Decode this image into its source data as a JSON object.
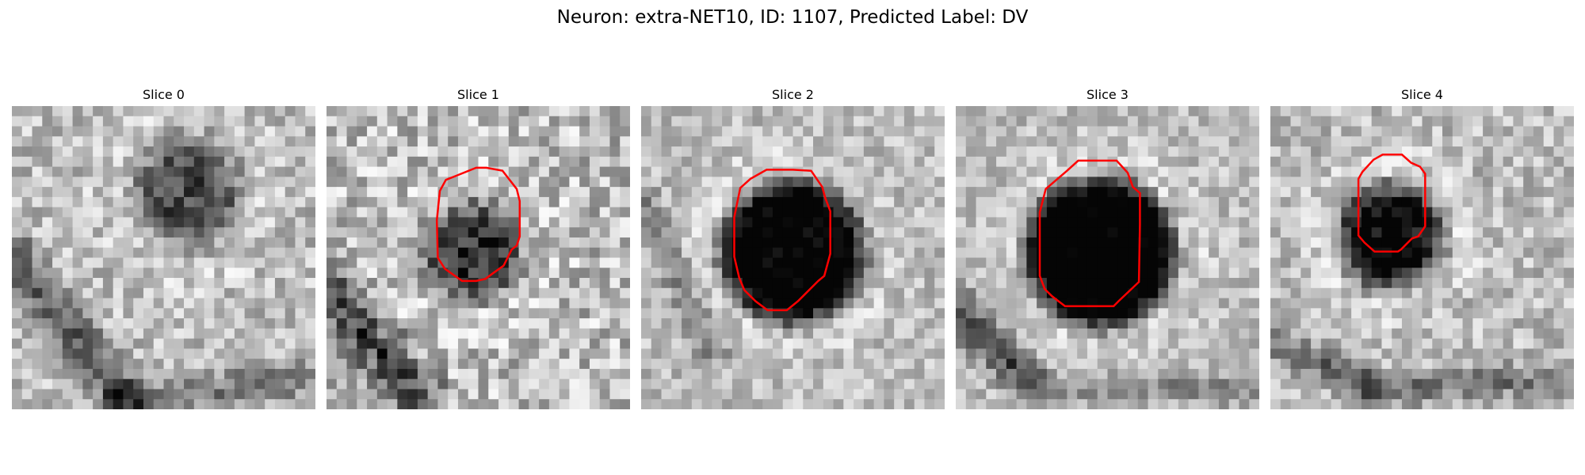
{
  "figure": {
    "title": "Neuron: extra-NET10, ID: 1107, Predicted Label: DV",
    "colormap": "grayscale",
    "contour_color": "#ff0000"
  },
  "panels": [
    {
      "title": "Slice 0"
    },
    {
      "title": "Slice 1"
    },
    {
      "title": "Slice 2"
    },
    {
      "title": "Slice 3"
    },
    {
      "title": "Slice 4"
    }
  ]
}
